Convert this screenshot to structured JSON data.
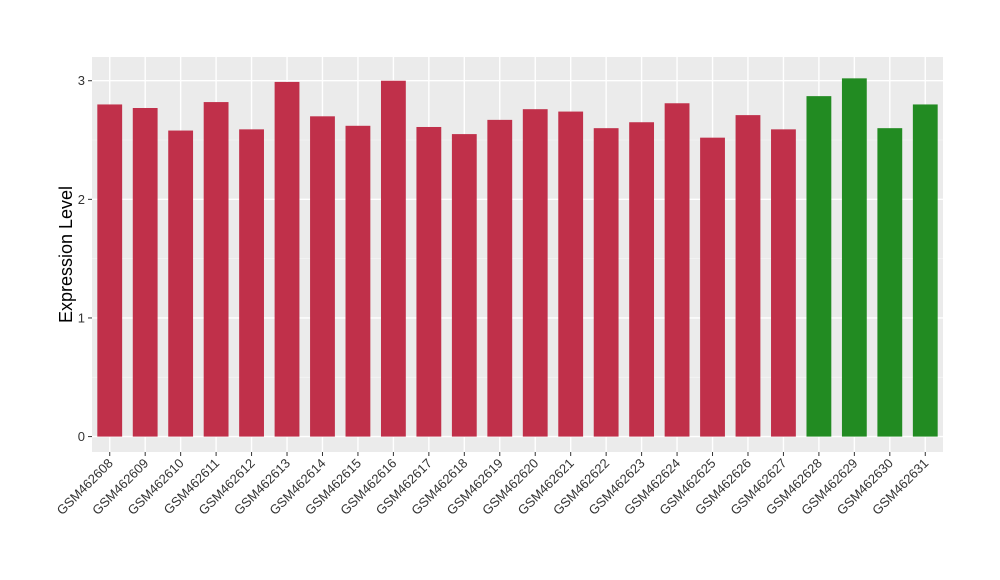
{
  "chart_data": {
    "type": "bar",
    "ylabel": "Expression Level",
    "xlabel": "",
    "ylim": [
      -0.13,
      3.2
    ],
    "yticks": [
      0,
      1,
      2,
      3
    ],
    "grid": true,
    "background": "#EBEBEB",
    "colors": {
      "group1": "#C0304A",
      "group2": "#228B22"
    },
    "categories": [
      "GSM462608",
      "GSM462609",
      "GSM462610",
      "GSM462611",
      "GSM462612",
      "GSM462613",
      "GSM462614",
      "GSM462615",
      "GSM462616",
      "GSM462617",
      "GSM462618",
      "GSM462619",
      "GSM462620",
      "GSM462621",
      "GSM462622",
      "GSM462623",
      "GSM462624",
      "GSM462625",
      "GSM462626",
      "GSM462627",
      "GSM462628",
      "GSM462629",
      "GSM462630",
      "GSM462631"
    ],
    "values": [
      2.8,
      2.77,
      2.58,
      2.82,
      2.59,
      2.99,
      2.7,
      2.62,
      3.0,
      2.61,
      2.55,
      2.67,
      2.76,
      2.74,
      2.6,
      2.65,
      2.81,
      2.52,
      2.71,
      2.59,
      2.87,
      3.02,
      2.6,
      2.8
    ],
    "groups": [
      "group1",
      "group1",
      "group1",
      "group1",
      "group1",
      "group1",
      "group1",
      "group1",
      "group1",
      "group1",
      "group1",
      "group1",
      "group1",
      "group1",
      "group1",
      "group1",
      "group1",
      "group1",
      "group1",
      "group1",
      "group2",
      "group2",
      "group2",
      "group2"
    ]
  }
}
